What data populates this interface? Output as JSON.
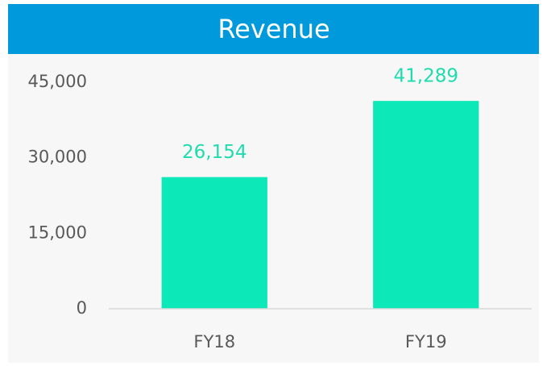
{
  "chart_data": {
    "type": "bar",
    "title": "Revenue",
    "categories": [
      "FY18",
      "FY19"
    ],
    "values": [
      26154,
      41289
    ],
    "value_labels": [
      "26,154",
      "41,289"
    ],
    "color": "#0de8b8",
    "ylim": [
      0,
      45000
    ],
    "yticks": [
      0,
      {
        "value": 15000,
        "label": "15,000"
      },
      {
        "value": 30000,
        "label": "30,000"
      },
      {
        "value": 45000,
        "label": "45,000"
      }
    ],
    "grid": false
  }
}
